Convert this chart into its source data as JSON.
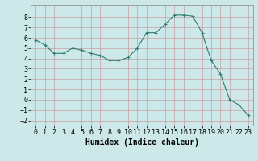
{
  "x": [
    0,
    1,
    2,
    3,
    4,
    5,
    6,
    7,
    8,
    9,
    10,
    11,
    12,
    13,
    14,
    15,
    16,
    17,
    18,
    19,
    20,
    21,
    22,
    23
  ],
  "y": [
    5.8,
    5.3,
    4.5,
    4.5,
    5.0,
    4.8,
    4.5,
    4.3,
    3.8,
    3.8,
    4.1,
    5.0,
    6.5,
    6.5,
    7.3,
    8.2,
    8.2,
    8.1,
    6.5,
    3.8,
    2.5,
    0.0,
    -0.5,
    -1.5
  ],
  "line_color": "#2d7d6e",
  "marker": "+",
  "marker_size": 3,
  "background_color": "#cde8e8",
  "grid_color": "#c8a0a0",
  "xlabel": "Humidex (Indice chaleur)",
  "xlabel_fontsize": 7,
  "ylim": [
    -2.5,
    9.2
  ],
  "xlim": [
    -0.5,
    23.5
  ],
  "yticks": [
    -2,
    -1,
    0,
    1,
    2,
    3,
    4,
    5,
    6,
    7,
    8
  ],
  "xticks": [
    0,
    1,
    2,
    3,
    4,
    5,
    6,
    7,
    8,
    9,
    10,
    11,
    12,
    13,
    14,
    15,
    16,
    17,
    18,
    19,
    20,
    21,
    22,
    23
  ],
  "tick_fontsize": 6
}
